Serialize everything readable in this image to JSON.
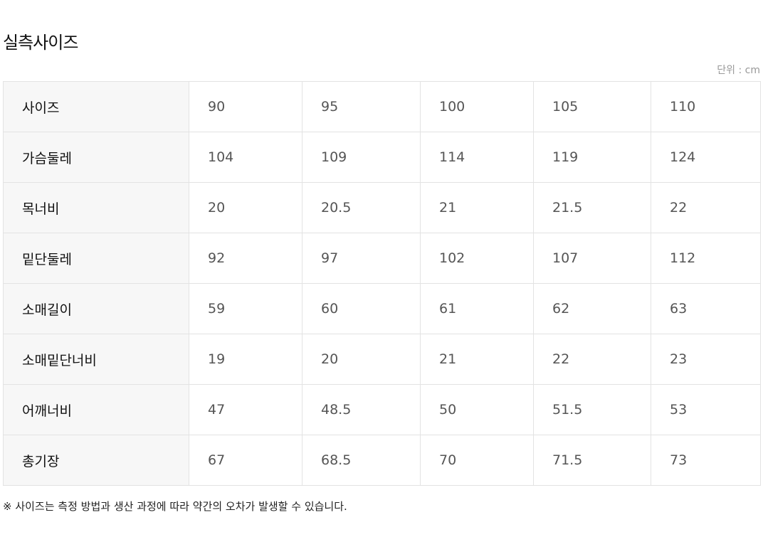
{
  "title": "실측사이즈",
  "unit": "단위 : cm",
  "rows": [
    {
      "label": "사이즈",
      "values": [
        "90",
        "95",
        "100",
        "105",
        "110"
      ]
    },
    {
      "label": "가슴둘레",
      "values": [
        "104",
        "109",
        "114",
        "119",
        "124"
      ]
    },
    {
      "label": "목너비",
      "values": [
        "20",
        "20.5",
        "21",
        "21.5",
        "22"
      ]
    },
    {
      "label": "밑단둘레",
      "values": [
        "92",
        "97",
        "102",
        "107",
        "112"
      ]
    },
    {
      "label": "소매길이",
      "values": [
        "59",
        "60",
        "61",
        "62",
        "63"
      ]
    },
    {
      "label": "소매밑단너비",
      "values": [
        "19",
        "20",
        "21",
        "22",
        "23"
      ]
    },
    {
      "label": "어깨너비",
      "values": [
        "47",
        "48.5",
        "50",
        "51.5",
        "53"
      ]
    },
    {
      "label": "총기장",
      "values": [
        "67",
        "68.5",
        "70",
        "71.5",
        "73"
      ]
    }
  ],
  "note": "※ 사이즈는 측정 방법과 생산 과정에 따라 약간의 오차가 발생할 수 있습니다."
}
